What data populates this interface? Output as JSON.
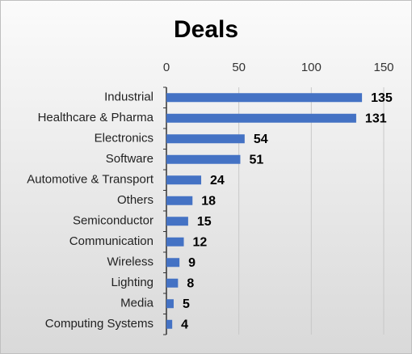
{
  "chart_data": {
    "type": "bar",
    "orientation": "horizontal",
    "title": "Deals",
    "categories": [
      "Industrial",
      "Healthcare & Pharma",
      "Electronics",
      "Software",
      "Automotive & Transport",
      "Others",
      "Semiconductor",
      "Communication",
      "Wireless",
      "Lighting",
      "Media",
      "Computing Systems"
    ],
    "values": [
      135,
      131,
      54,
      51,
      24,
      18,
      15,
      12,
      9,
      8,
      5,
      4
    ],
    "color": "#4472c4",
    "xlim": [
      0,
      150
    ],
    "xticks": [
      0,
      50,
      100,
      150
    ],
    "grid": true
  }
}
